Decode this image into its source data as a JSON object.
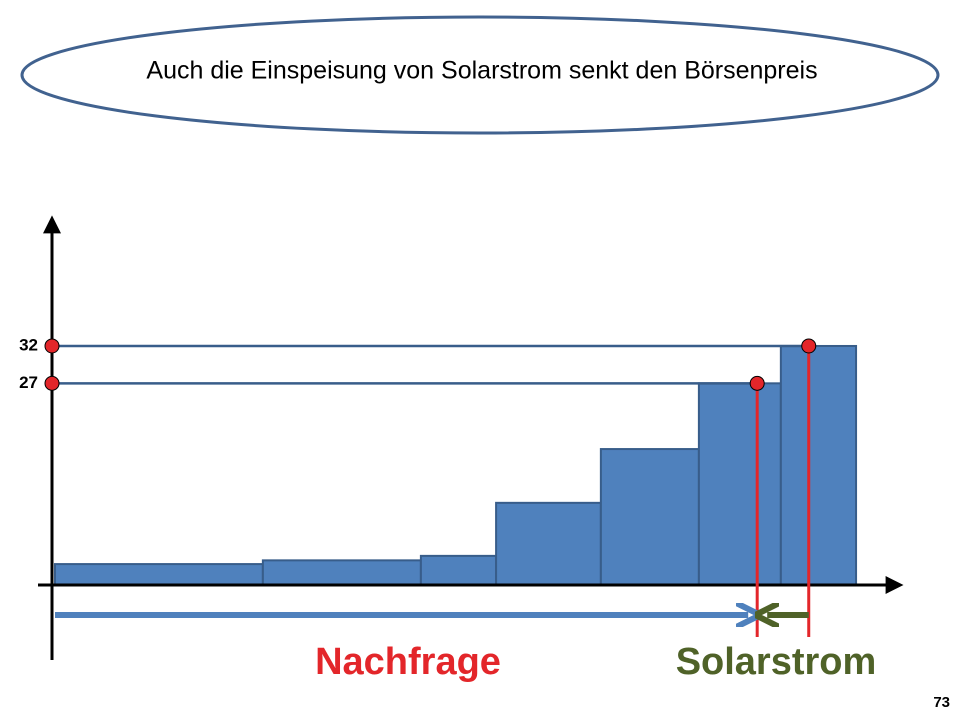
{
  "chart_data": {
    "type": "histogram",
    "title": "Auch die Einspeisung von Solarstrom senkt den Börsenpreis",
    "bins": [
      0,
      24.6,
      43.3,
      52.2,
      64.6,
      76.2,
      85.9,
      94.8
    ],
    "values": [
      2.8,
      3.3,
      3.9,
      11,
      18.2,
      27,
      32
    ],
    "color": "#4f81bd",
    "xlim": [
      0,
      100
    ],
    "ylim": [
      0,
      49
    ],
    "yticks": [
      27,
      32
    ],
    "markers": [
      {
        "x": 83.1,
        "y": 27
      },
      {
        "x": 89.2,
        "y": 32
      }
    ],
    "annotations": [
      "Nachfrage",
      "Solarstrom"
    ]
  },
  "page_number": "73"
}
